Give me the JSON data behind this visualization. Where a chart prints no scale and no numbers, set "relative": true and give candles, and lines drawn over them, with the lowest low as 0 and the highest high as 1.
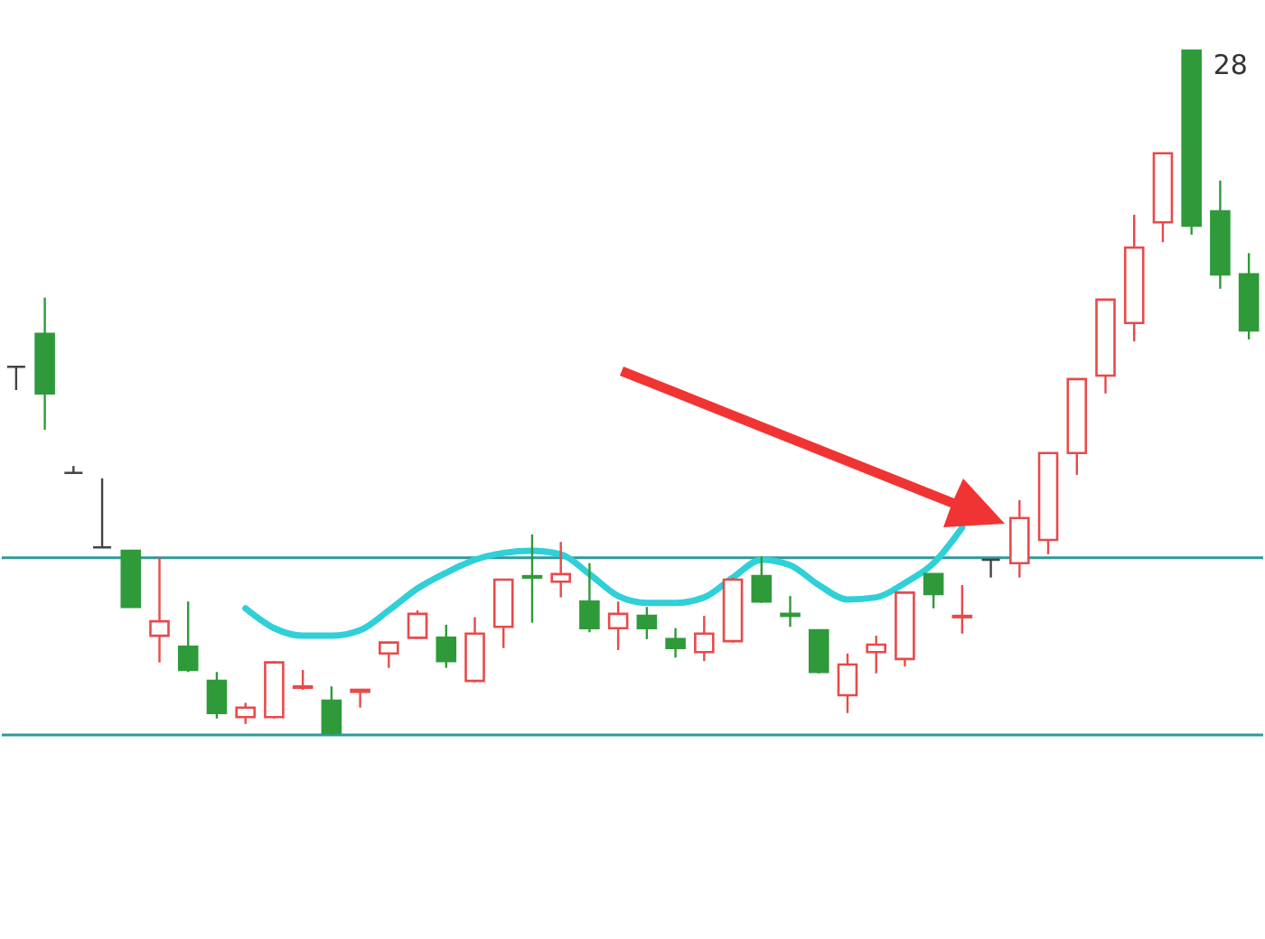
{
  "chart_data": {
    "type": "candlestick",
    "relative": true,
    "tick_labels": false,
    "categories": [
      null,
      null,
      null,
      null,
      null,
      null,
      null,
      null,
      null,
      null,
      null,
      null,
      null,
      null,
      null,
      null,
      null,
      null,
      null,
      null,
      null,
      null,
      null,
      null,
      null,
      null,
      null,
      null,
      null,
      null,
      null,
      null,
      null,
      null,
      null,
      null,
      null,
      null,
      null,
      null,
      null,
      null,
      null,
      null
    ],
    "ohlc": [
      [
        0.538,
        0.538,
        0.504,
        0.538
      ],
      [
        0.586,
        0.639,
        0.446,
        0.499
      ],
      [
        0.383,
        0.393,
        0.383,
        0.383
      ],
      [
        0.274,
        0.375,
        0.274,
        0.274
      ],
      [
        0.269,
        0.269,
        0.187,
        0.187
      ],
      [
        0.145,
        0.259,
        0.106,
        0.166
      ],
      [
        0.129,
        0.195,
        0.092,
        0.095
      ],
      [
        0.079,
        0.092,
        0.024,
        0.032
      ],
      [
        0.026,
        0.047,
        0.016,
        0.04
      ],
      [
        0.026,
        0.108,
        0.024,
        0.106
      ],
      [
        0.069,
        0.095,
        0.066,
        0.071
      ],
      [
        0.05,
        0.071,
        0,
        0.003
      ],
      [
        0.063,
        0.066,
        0.04,
        0.066
      ],
      [
        0.119,
        0.135,
        0.098,
        0.135
      ],
      [
        0.142,
        0.182,
        0.142,
        0.177
      ],
      [
        0.142,
        0.161,
        0.098,
        0.108
      ],
      [
        0.079,
        0.172,
        0.077,
        0.148
      ],
      [
        0.158,
        0.227,
        0.127,
        0.227
      ],
      [
        0.232,
        0.293,
        0.164,
        0.23
      ],
      [
        0.224,
        0.282,
        0.201,
        0.235
      ],
      [
        0.195,
        0.251,
        0.15,
        0.156
      ],
      [
        0.156,
        0.195,
        0.124,
        0.177
      ],
      [
        0.174,
        0.187,
        0.14,
        0.156
      ],
      [
        0.14,
        0.156,
        0.113,
        0.127
      ],
      [
        0.121,
        0.174,
        0.108,
        0.148
      ],
      [
        0.137,
        0.23,
        0.135,
        0.227
      ],
      [
        0.232,
        0.261,
        0.193,
        0.195
      ],
      [
        0.177,
        0.203,
        0.158,
        0.174
      ],
      [
        0.153,
        0.153,
        0.09,
        0.092
      ],
      [
        0.058,
        0.119,
        0.032,
        0.103
      ],
      [
        0.121,
        0.145,
        0.09,
        0.132
      ],
      [
        0.111,
        0.208,
        0.1,
        0.208
      ],
      [
        0.235,
        0.235,
        0.185,
        0.206
      ],
      [
        0.172,
        0.219,
        0.148,
        0.174
      ],
      [
        0.256,
        0.256,
        0.23,
        0.256
      ],
      [
        0.251,
        0.343,
        0.23,
        0.317
      ],
      [
        0.285,
        0.412,
        0.264,
        0.412
      ],
      [
        0.412,
        0.52,
        0.38,
        0.52
      ],
      [
        0.525,
        0.636,
        0.499,
        0.636
      ],
      [
        0.602,
        0.76,
        0.575,
        0.712
      ],
      [
        0.749,
        0.85,
        0.72,
        0.85
      ],
      [
        1,
        1,
        0.731,
        0.744
      ],
      [
        0.765,
        0.81,
        0.652,
        0.673
      ],
      [
        0.673,
        0.704,
        0.578,
        0.591
      ]
    ],
    "colors": [
      "#444444",
      "#2f9a3a",
      "#444444",
      "#444444",
      "#2f9a3a",
      "#e84a4a",
      "#2f9a3a",
      "#2f9a3a",
      "#e84a4a",
      "#e84a4a",
      "#e84a4a",
      "#2f9a3a",
      "#e84a4a",
      "#e84a4a",
      "#e84a4a",
      "#2f9a3a",
      "#e84a4a",
      "#e84a4a",
      "#2f9a3a",
      "#e84a4a",
      "#2f9a3a",
      "#e84a4a",
      "#2f9a3a",
      "#2f9a3a",
      "#e84a4a",
      "#e84a4a",
      "#2f9a3a",
      "#2f9a3a",
      "#2f9a3a",
      "#e84a4a",
      "#e84a4a",
      "#e84a4a",
      "#2f9a3a",
      "#e84a4a",
      "#444444",
      "#e84a4a",
      "#e84a4a",
      "#e84a4a",
      "#e84a4a",
      "#e84a4a",
      "#e84a4a",
      "#2f9a3a",
      "#2f9a3a",
      "#2f9a3a"
    ],
    "ref_lines": [
      {
        "axis": "y",
        "value": 0.259,
        "color": "#2e9a9a"
      },
      {
        "axis": "y",
        "value": 0,
        "color": "#2e9a9a"
      }
    ],
    "series": [
      {
        "type": "line",
        "color": "#2fd0d8",
        "values": [
          null,
          null,
          null,
          null,
          null,
          null,
          null,
          null,
          0.185,
          0.156,
          0.145,
          0.145,
          0.153,
          0.182,
          0.214,
          0.237,
          0.256,
          0.266,
          0.269,
          0.264,
          0.235,
          0.203,
          0.193,
          0.193,
          0.201,
          0.23,
          0.256,
          0.248,
          0.219,
          0.198,
          0.201,
          0.222,
          0.251,
          0.303,
          null,
          null,
          null,
          null,
          null,
          null,
          null,
          null,
          null,
          null
        ]
      }
    ],
    "annotations": [
      "28"
    ]
  }
}
